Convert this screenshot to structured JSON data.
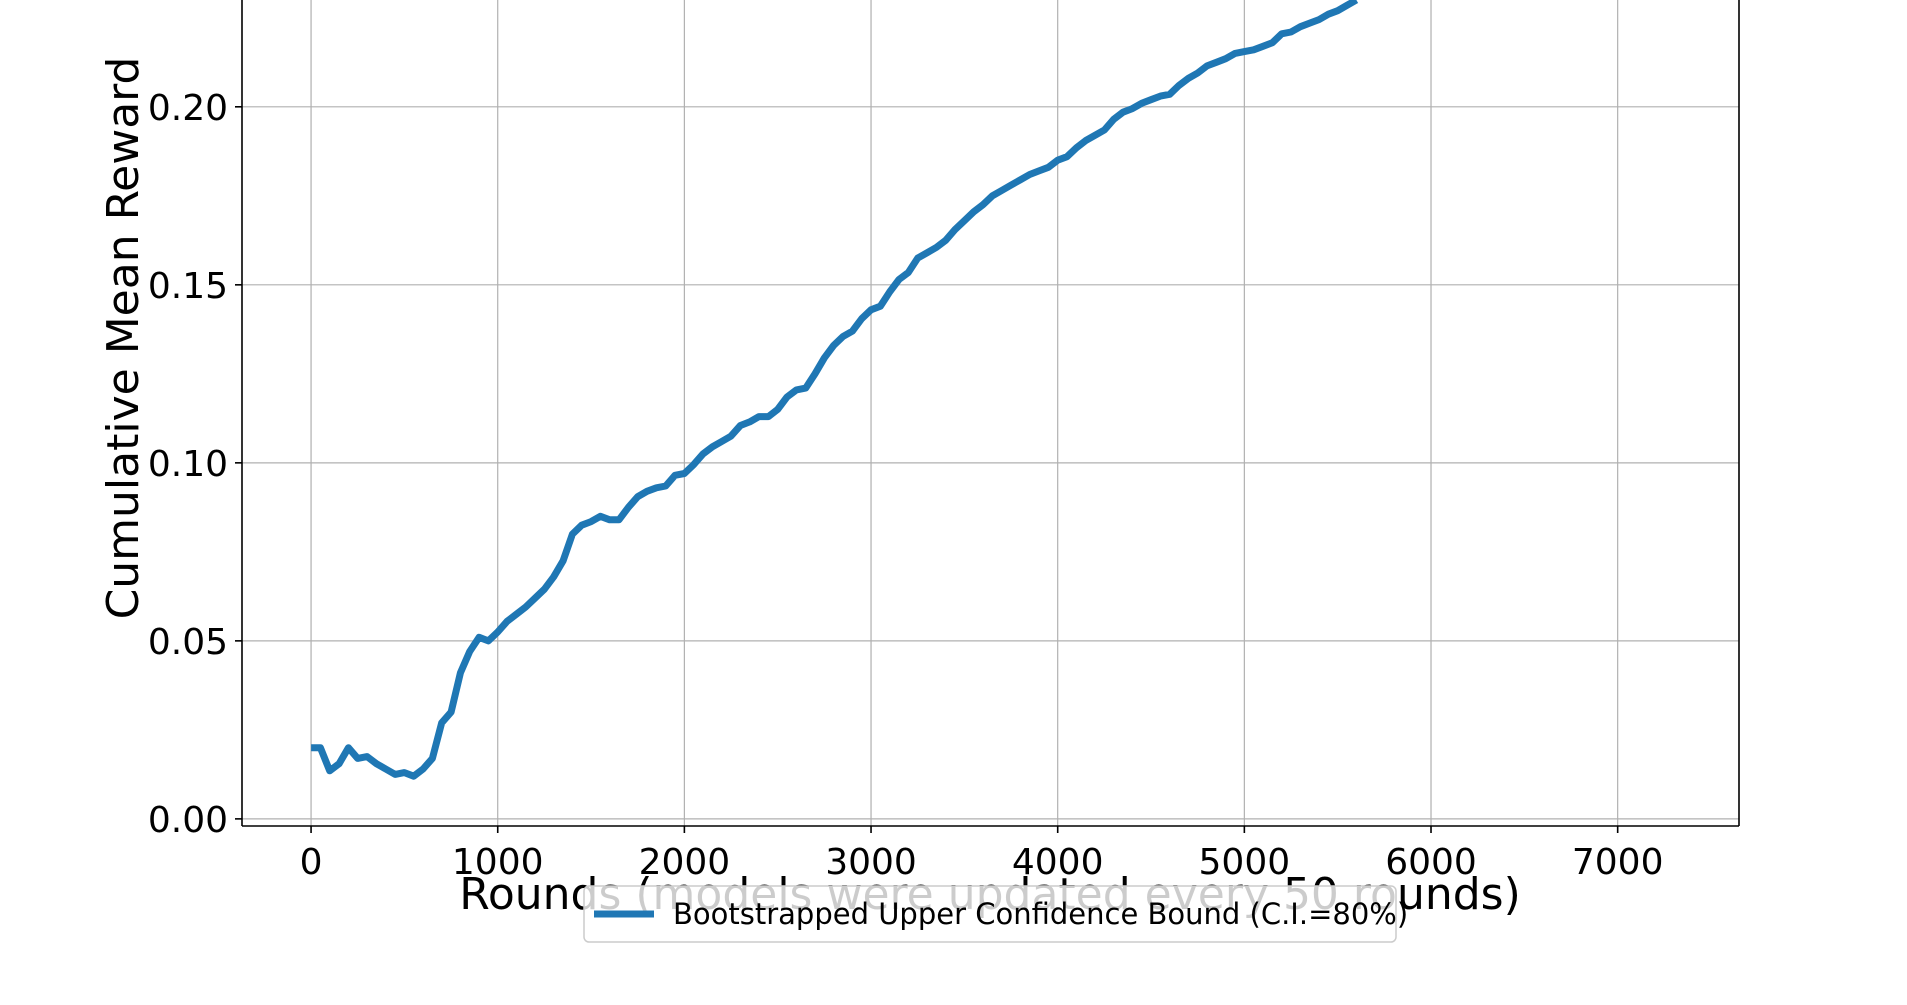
{
  "chart_data": {
    "type": "line",
    "xlabel": "Rounds (models were updated every 50 rounds)",
    "ylabel": "Cumulative Mean Reward",
    "xlim": [
      -370,
      7650
    ],
    "ylim": [
      -0.002,
      0.23
    ],
    "xticks": [
      0,
      1000,
      2000,
      3000,
      4000,
      5000,
      6000,
      7000
    ],
    "yticks": [
      0.0,
      0.05,
      0.1,
      0.15,
      0.2
    ],
    "xtick_labels": [
      "0",
      "1000",
      "2000",
      "3000",
      "4000",
      "5000",
      "6000",
      "7000"
    ],
    "ytick_labels": [
      "0.00",
      "0.05",
      "0.10",
      "0.15",
      "0.20"
    ],
    "grid": true,
    "legend_position": "bottom-center",
    "series": [
      {
        "name": "Bootstrapped Upper Confidence Bound (C.I.=80%)",
        "color": "#1f77b4",
        "x": [
          0,
          50,
          100,
          150,
          200,
          250,
          300,
          350,
          400,
          450,
          500,
          550,
          600,
          650,
          700,
          750,
          800,
          850,
          900,
          950,
          1000,
          1050,
          1100,
          1150,
          1200,
          1250,
          1300,
          1350,
          1400,
          1450,
          1500,
          1550,
          1600,
          1650,
          1700,
          1750,
          1800,
          1850,
          1900,
          1950,
          2000,
          2050,
          2100,
          2150,
          2200,
          2250,
          2300,
          2350,
          2400,
          2450,
          2500,
          2550,
          2600,
          2650,
          2700,
          2750,
          2800,
          2850,
          2900,
          2950,
          3000,
          3050,
          3100,
          3150,
          3200,
          3250,
          3300,
          3350,
          3400,
          3450,
          3500,
          3550,
          3600,
          3650,
          3700,
          3750,
          3800,
          3850,
          3900,
          3950,
          4000,
          4050,
          4100,
          4150,
          4200,
          4250,
          4300,
          4350,
          4400,
          4450,
          4500,
          4550,
          4600,
          4650,
          4700,
          4750,
          4800,
          4850,
          4900,
          4950,
          5000,
          5050,
          5100,
          5150,
          5200,
          5250,
          5300,
          5350,
          5400,
          5450,
          5500,
          5550,
          5600
        ],
        "y": [
          0.02,
          0.02,
          0.0135,
          0.0155,
          0.02,
          0.017,
          0.0175,
          0.0155,
          0.014,
          0.0125,
          0.013,
          0.012,
          0.014,
          0.017,
          0.027,
          0.03,
          0.041,
          0.047,
          0.051,
          0.05,
          0.0525,
          0.0555,
          0.0575,
          0.0595,
          0.062,
          0.0645,
          0.068,
          0.0725,
          0.08,
          0.0825,
          0.0835,
          0.085,
          0.084,
          0.084,
          0.0875,
          0.0905,
          0.092,
          0.093,
          0.0935,
          0.0965,
          0.097,
          0.0995,
          0.1025,
          0.1045,
          0.106,
          0.1075,
          0.1105,
          0.1115,
          0.113,
          0.113,
          0.115,
          0.1185,
          0.1205,
          0.121,
          0.125,
          0.1295,
          0.133,
          0.1355,
          0.137,
          0.1405,
          0.143,
          0.144,
          0.148,
          0.1515,
          0.1535,
          0.1575,
          0.159,
          0.1605,
          0.1625,
          0.1655,
          0.168,
          0.1705,
          0.1725,
          0.175,
          0.1765,
          0.178,
          0.1795,
          0.181,
          0.182,
          0.183,
          0.185,
          0.186,
          0.1885,
          0.1905,
          0.192,
          0.1935,
          0.1965,
          0.1985,
          0.1995,
          0.201,
          0.202,
          0.203,
          0.2035,
          0.206,
          0.208,
          0.2095,
          0.2115,
          0.2125,
          0.2135,
          0.215,
          0.2155,
          0.216,
          0.217,
          0.218,
          0.2205,
          0.221,
          0.2225,
          0.2235,
          0.2245,
          0.226,
          0.227,
          0.2285,
          0.23
        ]
      }
    ]
  }
}
